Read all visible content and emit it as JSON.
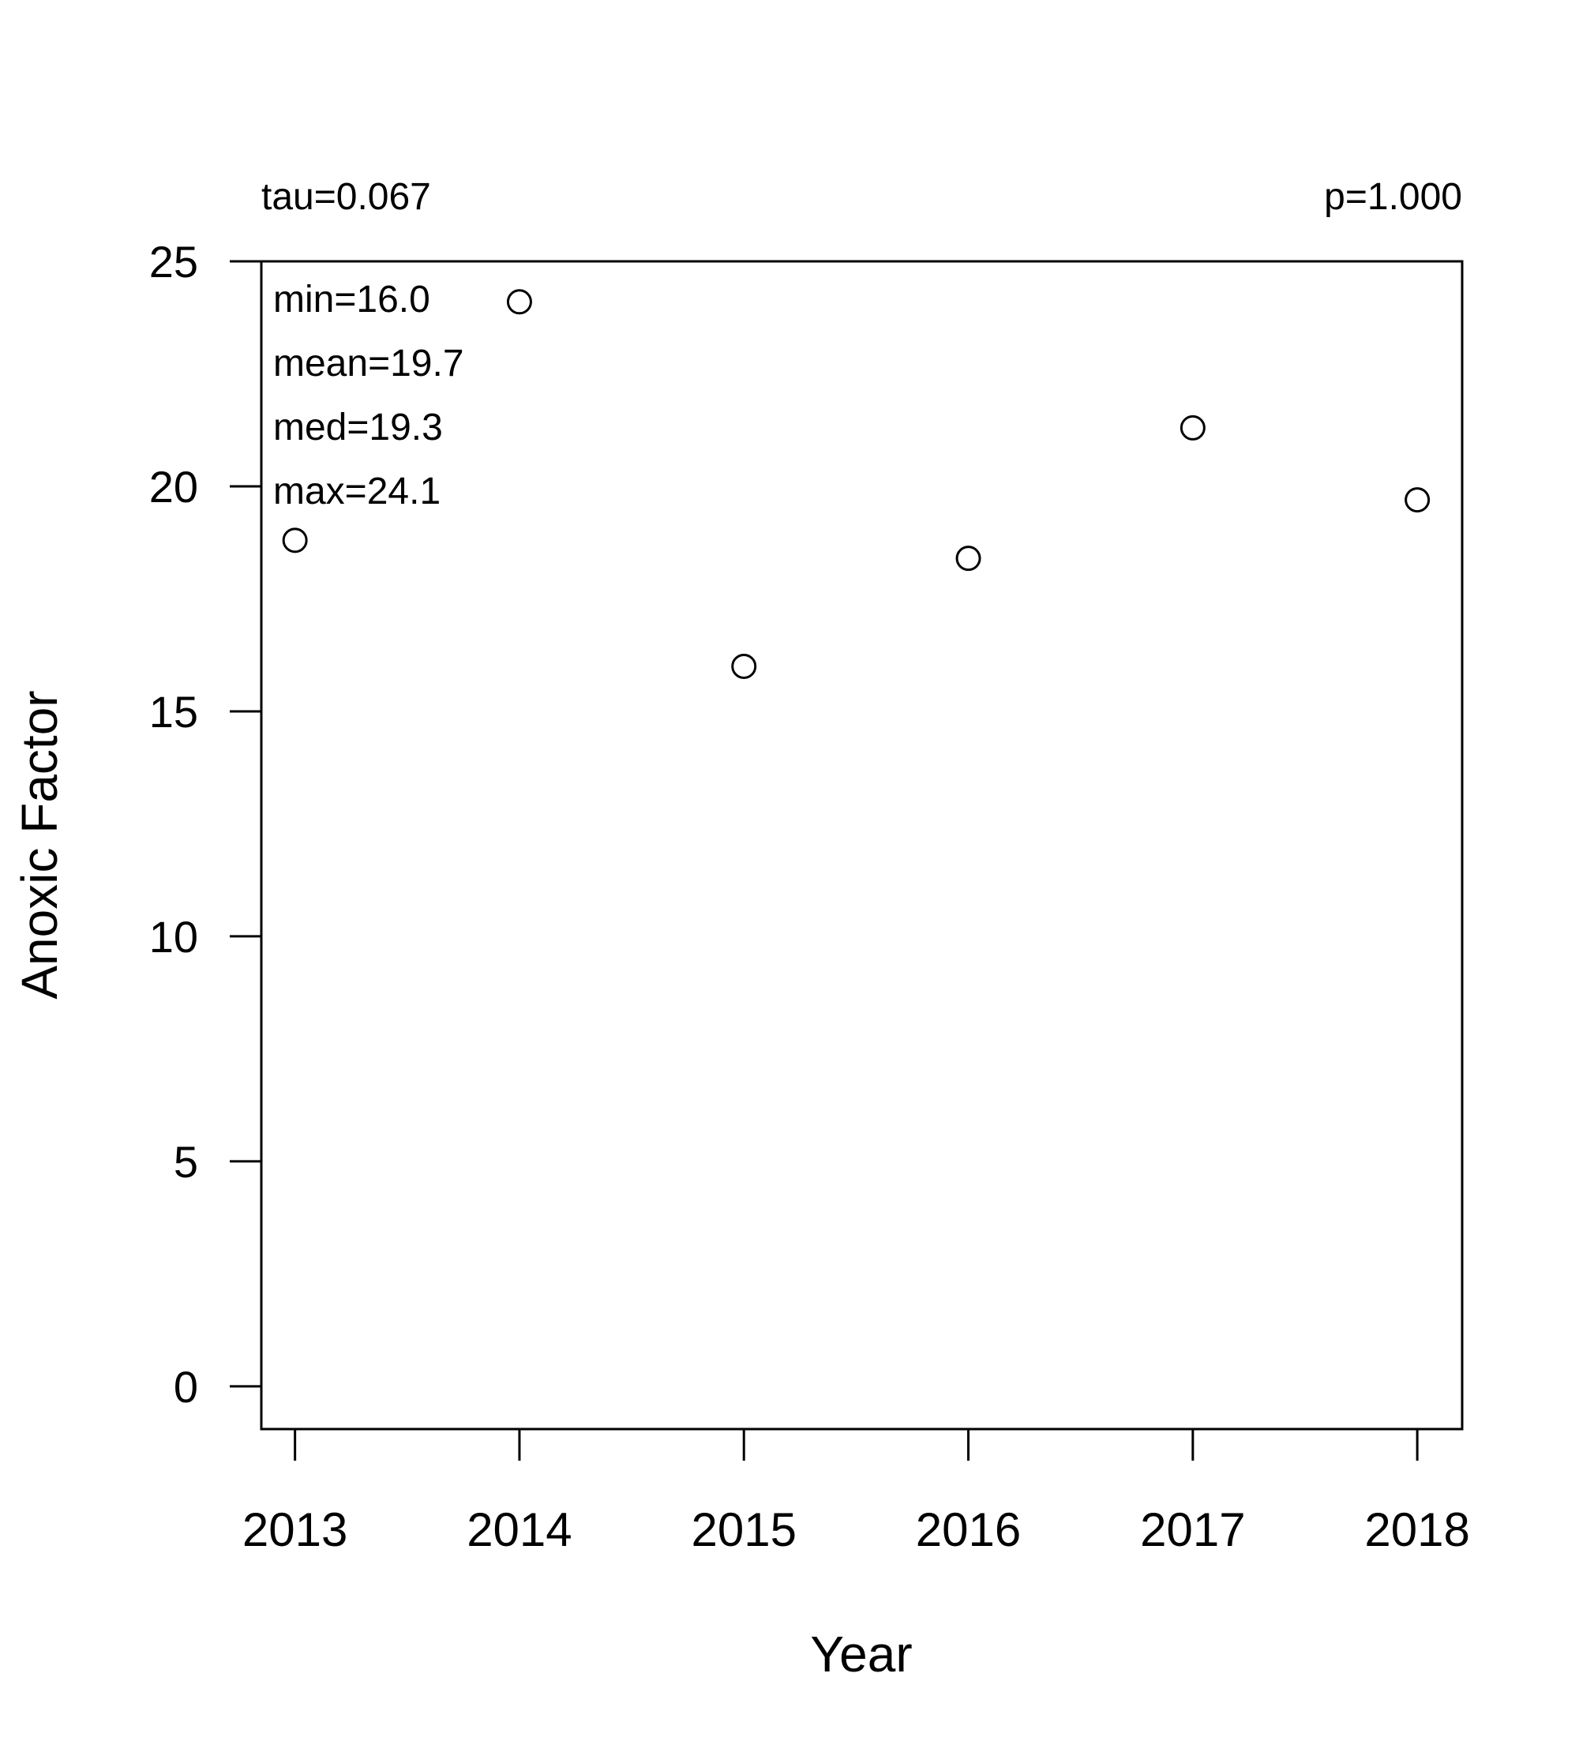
{
  "chart_data": {
    "type": "scatter",
    "xlabel": "Year",
    "ylabel": "Anoxic Factor",
    "x": [
      2013,
      2014,
      2015,
      2016,
      2017,
      2018
    ],
    "y": [
      18.8,
      24.1,
      16.0,
      18.4,
      21.3,
      19.7
    ],
    "xlim": [
      2012.85,
      2018.2
    ],
    "ylim": [
      -0.95,
      25.0
    ],
    "x_ticks": [
      "2013",
      "2014",
      "2015",
      "2016",
      "2017",
      "2018"
    ],
    "y_ticks": [
      "0",
      "5",
      "10",
      "15",
      "20",
      "25"
    ],
    "marker": "open-circle",
    "grid": false,
    "annotations": {
      "tau": "tau=0.067",
      "p": "p=1.000",
      "min": "min=16.0",
      "mean": "mean=19.7",
      "med": "med=19.3",
      "max": "max=24.1"
    }
  }
}
